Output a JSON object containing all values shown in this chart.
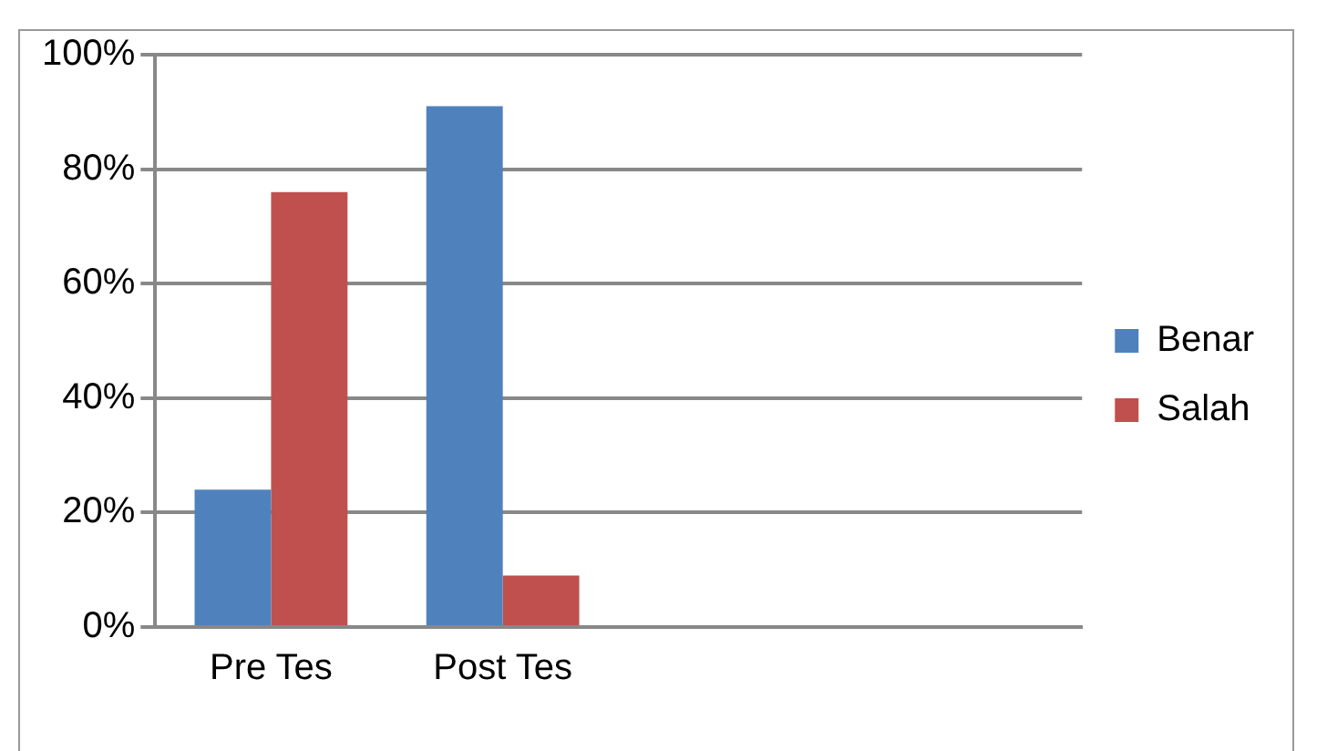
{
  "chart_data": {
    "type": "bar",
    "categories": [
      "Pre Tes",
      "Post Tes",
      null,
      null
    ],
    "series": [
      {
        "name": "Benar",
        "color": "#4f81bd",
        "values": [
          24,
          91,
          null,
          null
        ]
      },
      {
        "name": "Salah",
        "color": "#c0504d",
        "values": [
          76,
          9,
          null,
          null
        ]
      }
    ],
    "ylim": [
      0,
      100
    ],
    "yticks": [
      {
        "value": 0,
        "label": "0%"
      },
      {
        "value": 20,
        "label": "20%"
      },
      {
        "value": 40,
        "label": "40%"
      },
      {
        "value": 60,
        "label": "60%"
      },
      {
        "value": 80,
        "label": "80%"
      },
      {
        "value": 100,
        "label": "100%"
      }
    ],
    "grid": "y",
    "legend": "right"
  }
}
